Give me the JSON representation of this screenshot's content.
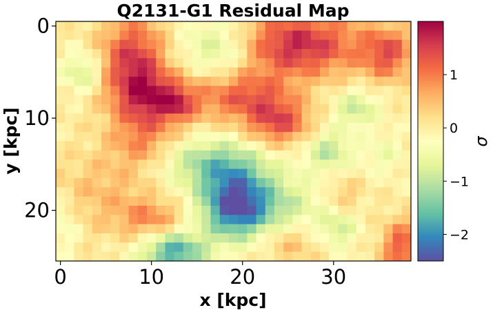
{
  "chart_data": {
    "type": "heatmap",
    "title": "Q2131-G1 Residual Map",
    "xlabel": "x [kpc]",
    "ylabel": "y [kpc]",
    "x_range": [
      -0.5,
      38.5
    ],
    "y_range": [
      -0.5,
      25.5
    ],
    "y_inverted": true,
    "xticks": [
      0,
      10,
      20,
      30
    ],
    "yticks": [
      0,
      10,
      20
    ],
    "grid": false,
    "colormap": "Spectral_r",
    "colorbar": {
      "label": "σ",
      "vmin": -2.5,
      "vmax": 2.0,
      "ticks": [
        1,
        0,
        -1,
        -2
      ],
      "tick_labels": [
        "1",
        "0",
        "−1",
        "−2"
      ],
      "stops": [
        "#5e4fa2",
        "#3288bd",
        "#66c2a5",
        "#abdda4",
        "#e6f598",
        "#ffffbf",
        "#fee08b",
        "#fdae61",
        "#f46d43",
        "#d53e4f",
        "#9e0142"
      ]
    },
    "nx": 39,
    "ny": 26,
    "components": [
      {
        "x": 8.0,
        "y": 4.0,
        "sx": 2.5,
        "sy": 3.5,
        "amp": 1.6
      },
      {
        "x": 11.0,
        "y": 8.0,
        "sx": 3.0,
        "sy": 2.0,
        "amp": 1.4
      },
      {
        "x": 13.0,
        "y": 8.5,
        "sx": 1.0,
        "sy": 1.0,
        "amp": 0.6
      },
      {
        "x": 20.0,
        "y": 7.5,
        "sx": 3.5,
        "sy": 2.0,
        "amp": 1.2
      },
      {
        "x": 26.0,
        "y": 2.0,
        "sx": 5.0,
        "sy": 2.5,
        "amp": 1.7
      },
      {
        "x": 36.0,
        "y": 3.0,
        "sx": 2.0,
        "sy": 2.0,
        "amp": 1.2
      },
      {
        "x": 24.0,
        "y": 10.5,
        "sx": 2.5,
        "sy": 1.8,
        "amp": 1.3
      },
      {
        "x": 9.0,
        "y": 12.5,
        "sx": 2.5,
        "sy": 2.0,
        "amp": 0.8
      },
      {
        "x": 10.0,
        "y": 21.0,
        "sx": 2.5,
        "sy": 1.5,
        "amp": 0.8
      },
      {
        "x": 5.0,
        "y": 18.0,
        "sx": 4.0,
        "sy": 3.0,
        "amp": 0.5
      },
      {
        "x": 25.0,
        "y": 23.5,
        "sx": 2.5,
        "sy": 1.5,
        "amp": 0.6
      },
      {
        "x": 37.5,
        "y": 24.0,
        "sx": 1.5,
        "sy": 2.0,
        "amp": 1.3
      },
      {
        "x": 31.0,
        "y": 18.5,
        "sx": 1.5,
        "sy": 1.5,
        "amp": 0.5
      },
      {
        "x": 19.0,
        "y": 19.5,
        "sx": 2.5,
        "sy": 2.5,
        "amp": -2.0
      },
      {
        "x": 17.0,
        "y": 15.0,
        "sx": 4.0,
        "sy": 2.0,
        "amp": -1.3
      },
      {
        "x": 23.0,
        "y": 19.5,
        "sx": 4.0,
        "sy": 2.5,
        "amp": -1.0
      },
      {
        "x": 12.5,
        "y": 24.5,
        "sx": 2.5,
        "sy": 1.5,
        "amp": -1.8
      },
      {
        "x": 17.5,
        "y": 2.5,
        "sx": 3.0,
        "sy": 2.5,
        "amp": -1.0
      },
      {
        "x": 2.5,
        "y": 5.0,
        "sx": 1.5,
        "sy": 1.5,
        "amp": -0.9
      },
      {
        "x": 29.5,
        "y": 13.5,
        "sx": 1.8,
        "sy": 1.5,
        "amp": -1.0
      },
      {
        "x": 32.5,
        "y": 9.0,
        "sx": 1.8,
        "sy": 1.5,
        "amp": -0.9
      },
      {
        "x": 30.5,
        "y": 22.0,
        "sx": 1.5,
        "sy": 1.5,
        "amp": -0.8
      },
      {
        "x": 0.5,
        "y": 21.5,
        "sx": 1.0,
        "sy": 2.0,
        "amp": -0.5
      },
      {
        "x": 35.5,
        "y": 14.0,
        "sx": 1.5,
        "sy": 1.5,
        "amp": -0.5
      }
    ]
  }
}
